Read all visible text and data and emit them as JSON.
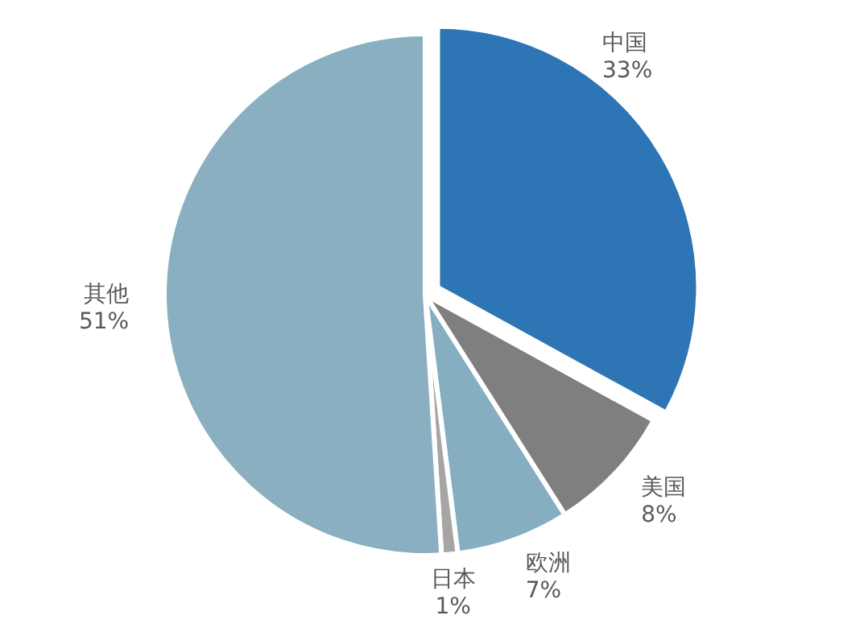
{
  "chart_data": {
    "type": "pie",
    "categories": [
      "中国",
      "美国",
      "欧洲",
      "日本",
      "其他"
    ],
    "values": [
      33,
      8,
      7,
      1,
      51
    ],
    "colors": [
      "#2e75b6",
      "#7f7f7f",
      "#85afc1",
      "#a5a5a5",
      "#8aafc1"
    ],
    "value_labels": [
      "33%",
      "8%",
      "7%",
      "1%",
      "51%"
    ]
  }
}
